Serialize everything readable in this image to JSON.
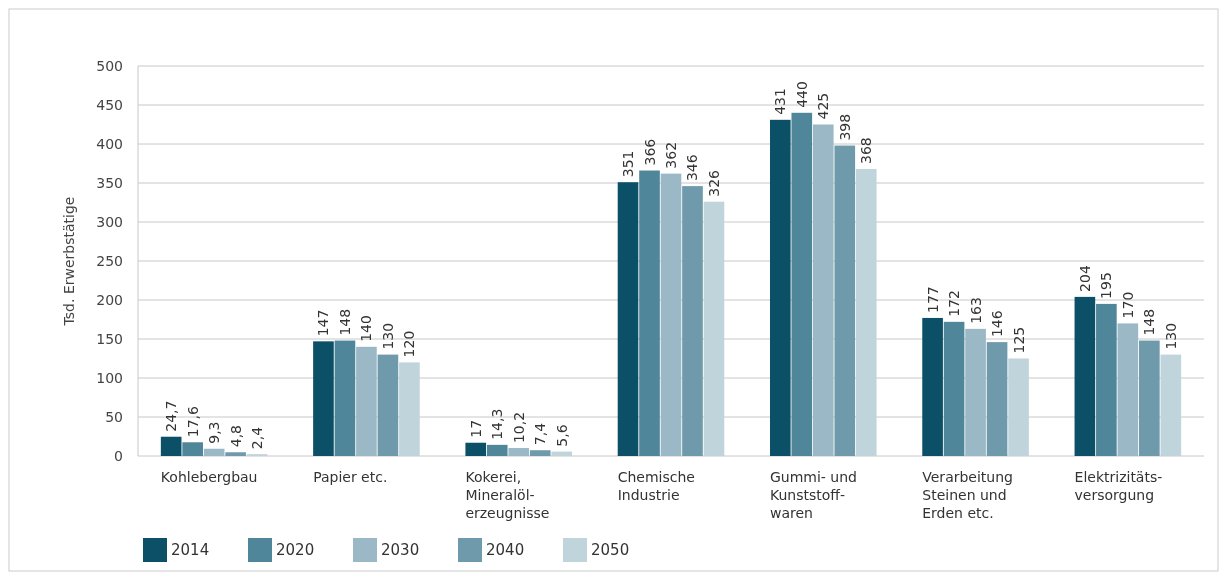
{
  "chart_data": {
    "type": "bar",
    "ylabel": "Tsd. Erwerbstätige",
    "categories": [
      "Kohlebergbau",
      "Papier etc.",
      "Kokerei,\nMineralöl-\nerzeugnisse",
      "Chemische\nIndustrie",
      "Gummi- und\nKunststoff-\nwaren",
      "Verarbeitung\nSteinen und\nErden etc.",
      "Elektrizitäts-\nversorgung"
    ],
    "series": [
      {
        "name": "2014",
        "color": "#0b5066",
        "values": [
          24.7,
          147,
          17,
          351,
          431,
          177,
          204
        ],
        "value_labels": [
          "24,7",
          "147",
          "17",
          "351",
          "431",
          "177",
          "204"
        ]
      },
      {
        "name": "2020",
        "color": "#4f8699",
        "values": [
          17.6,
          148,
          14.3,
          366,
          440,
          172,
          195
        ],
        "value_labels": [
          "17,6",
          "148",
          "14,3",
          "366",
          "440",
          "172",
          "195"
        ]
      },
      {
        "name": "2030",
        "color": "#9ab8c6",
        "values": [
          9.3,
          140,
          10.2,
          362,
          425,
          163,
          170
        ],
        "value_labels": [
          "9,3",
          "140",
          "10,2",
          "362",
          "425",
          "163",
          "170"
        ]
      },
      {
        "name": "2040",
        "color": "#6f9aab",
        "values": [
          4.8,
          130,
          7.4,
          346,
          398,
          146,
          148
        ],
        "value_labels": [
          "4,8",
          "130",
          "7,4",
          "346",
          "398",
          "146",
          "148"
        ]
      },
      {
        "name": "2050",
        "color": "#c0d4dc",
        "values": [
          2.4,
          120,
          5.6,
          326,
          368,
          125,
          130
        ],
        "value_labels": [
          "2,4",
          "120",
          "5,6",
          "326",
          "368",
          "125",
          "130"
        ]
      }
    ],
    "ylim": [
      0,
      500
    ],
    "yticks": [
      0,
      50,
      100,
      150,
      200,
      250,
      300,
      350,
      400,
      450,
      500
    ],
    "grid": "y",
    "legend": "bottom left"
  }
}
